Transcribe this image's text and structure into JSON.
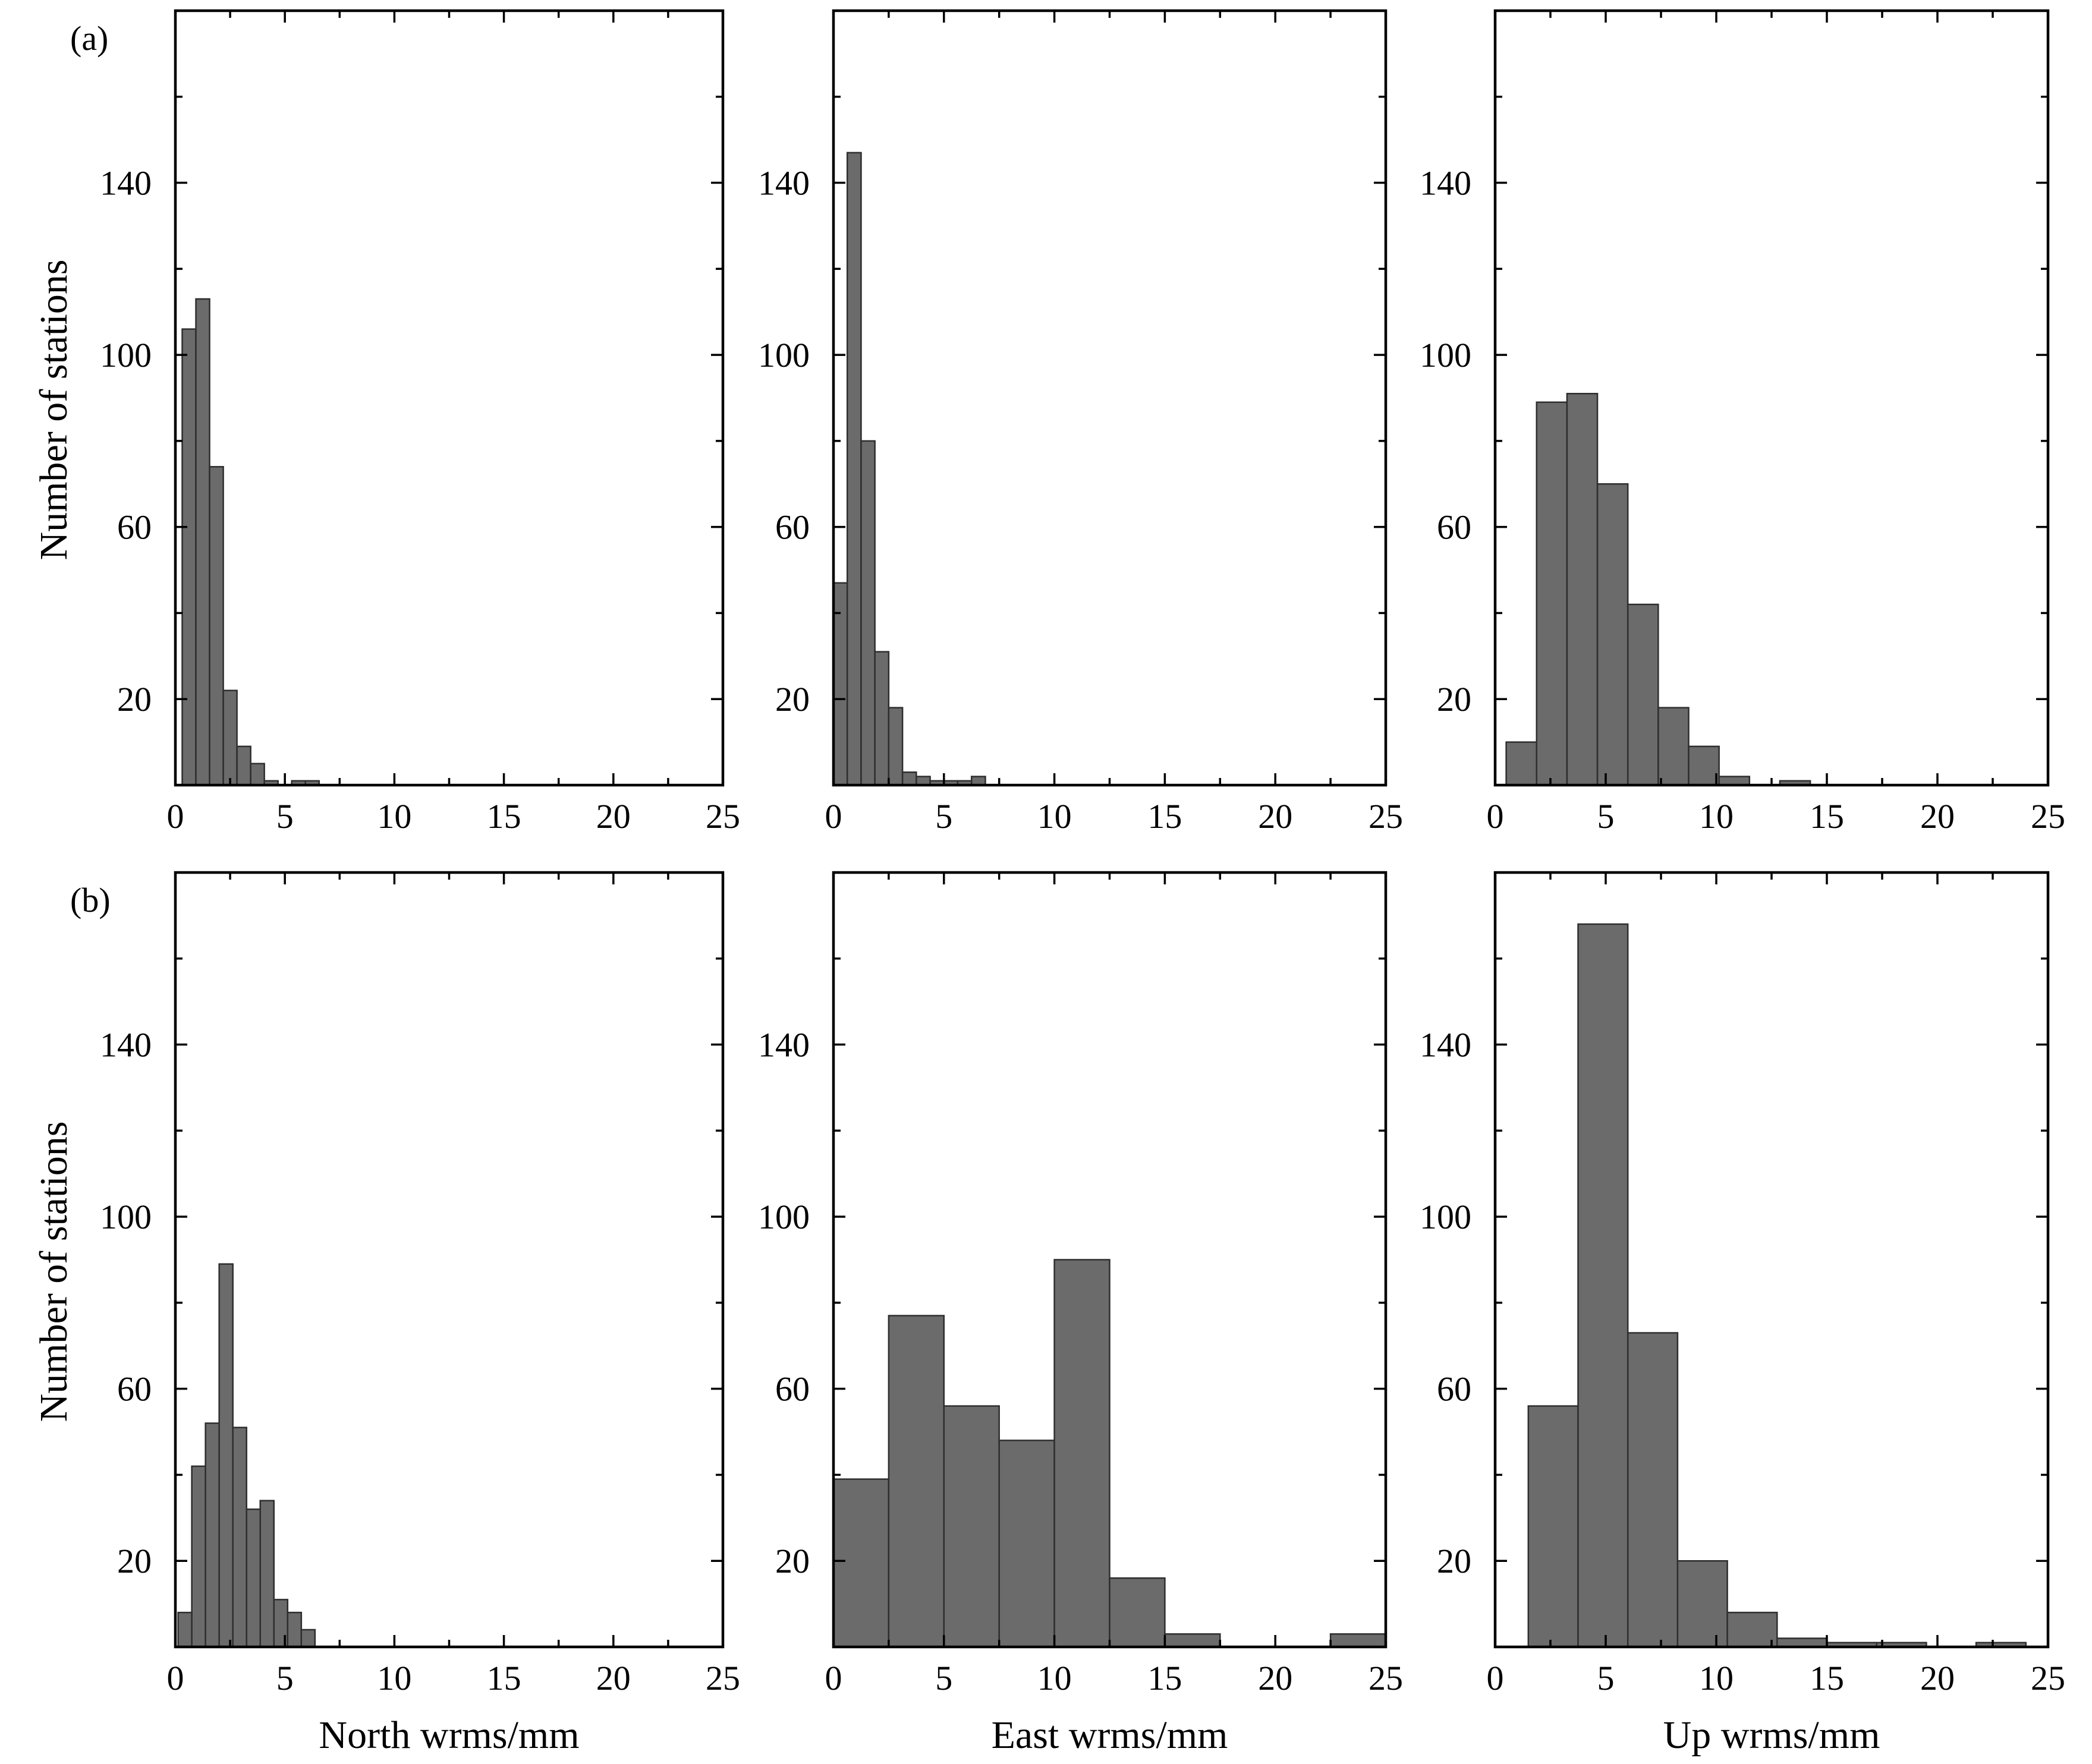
{
  "chart_data": [
    {
      "id": "a-north",
      "row": "a",
      "col": 0,
      "type": "bar",
      "panel_tag": "(a)",
      "ylabel": "Number of stations",
      "xlabel": "",
      "xlim": [
        0,
        25
      ],
      "ylim": [
        0,
        180
      ],
      "xticks": [
        0,
        5,
        10,
        15,
        20,
        25
      ],
      "yticks": [
        20,
        60,
        100,
        140
      ],
      "bin_width": 0.625,
      "bins": [
        {
          "x0": 0.3125,
          "count": 106
        },
        {
          "x0": 0.9375,
          "count": 113
        },
        {
          "x0": 1.5625,
          "count": 74
        },
        {
          "x0": 2.1875,
          "count": 22
        },
        {
          "x0": 2.8125,
          "count": 9
        },
        {
          "x0": 3.4375,
          "count": 5
        },
        {
          "x0": 4.0625,
          "count": 1
        },
        {
          "x0": 5.3125,
          "count": 1
        },
        {
          "x0": 5.9375,
          "count": 1
        }
      ]
    },
    {
      "id": "a-east",
      "row": "a",
      "col": 1,
      "type": "bar",
      "panel_tag": "",
      "ylabel": "",
      "xlabel": "",
      "xlim": [
        0,
        25
      ],
      "ylim": [
        0,
        180
      ],
      "xticks": [
        0,
        5,
        10,
        15,
        20,
        25
      ],
      "yticks": [
        20,
        60,
        100,
        140
      ],
      "bin_width": 0.625,
      "bins": [
        {
          "x0": 0.0,
          "count": 47
        },
        {
          "x0": 0.625,
          "count": 147
        },
        {
          "x0": 1.25,
          "count": 80
        },
        {
          "x0": 1.875,
          "count": 31
        },
        {
          "x0": 2.5,
          "count": 18
        },
        {
          "x0": 3.125,
          "count": 3
        },
        {
          "x0": 3.75,
          "count": 2
        },
        {
          "x0": 4.375,
          "count": 1
        },
        {
          "x0": 5.0,
          "count": 1
        },
        {
          "x0": 5.625,
          "count": 1
        },
        {
          "x0": 6.25,
          "count": 2
        }
      ]
    },
    {
      "id": "a-up",
      "row": "a",
      "col": 2,
      "type": "bar",
      "panel_tag": "",
      "ylabel": "",
      "xlabel": "",
      "xlim": [
        0,
        25
      ],
      "ylim": [
        0,
        180
      ],
      "xticks": [
        0,
        5,
        10,
        15,
        20,
        25
      ],
      "yticks": [
        20,
        60,
        100,
        140
      ],
      "bin_width": 1.375,
      "bins": [
        {
          "x0": 0.5,
          "count": 10
        },
        {
          "x0": 1.875,
          "count": 89
        },
        {
          "x0": 3.25,
          "count": 91
        },
        {
          "x0": 4.625,
          "count": 70
        },
        {
          "x0": 6.0,
          "count": 42
        },
        {
          "x0": 7.375,
          "count": 18
        },
        {
          "x0": 8.75,
          "count": 9
        },
        {
          "x0": 10.125,
          "count": 2
        },
        {
          "x0": 12.875,
          "count": 1
        }
      ]
    },
    {
      "id": "b-north",
      "row": "b",
      "col": 0,
      "type": "bar",
      "panel_tag": "(b)",
      "ylabel": "Number of stations",
      "xlabel": "North wrms/mm",
      "xlim": [
        0,
        25
      ],
      "ylim": [
        0,
        180
      ],
      "xticks": [
        0,
        5,
        10,
        15,
        20,
        25
      ],
      "yticks": [
        20,
        60,
        100,
        140
      ],
      "bin_width": 0.625,
      "bins": [
        {
          "x0": 0.125,
          "count": 8
        },
        {
          "x0": 0.75,
          "count": 42
        },
        {
          "x0": 1.375,
          "count": 52
        },
        {
          "x0": 2.0,
          "count": 89
        },
        {
          "x0": 2.625,
          "count": 51
        },
        {
          "x0": 3.25,
          "count": 32
        },
        {
          "x0": 3.875,
          "count": 34
        },
        {
          "x0": 4.5,
          "count": 11
        },
        {
          "x0": 5.125,
          "count": 8
        },
        {
          "x0": 5.75,
          "count": 4
        }
      ]
    },
    {
      "id": "b-east",
      "row": "b",
      "col": 1,
      "type": "bar",
      "panel_tag": "",
      "ylabel": "",
      "xlabel": "East wrms/mm",
      "xlim": [
        0,
        25
      ],
      "ylim": [
        0,
        180
      ],
      "xticks": [
        0,
        5,
        10,
        15,
        20,
        25
      ],
      "yticks": [
        20,
        60,
        100,
        140
      ],
      "bin_width": 2.5,
      "bins": [
        {
          "x0": 0.0,
          "count": 39
        },
        {
          "x0": 2.5,
          "count": 77
        },
        {
          "x0": 5.0,
          "count": 56
        },
        {
          "x0": 7.5,
          "count": 48
        },
        {
          "x0": 10.0,
          "count": 90
        },
        {
          "x0": 12.5,
          "count": 16
        },
        {
          "x0": 15.0,
          "count": 3
        },
        {
          "x0": 22.5,
          "count": 3
        }
      ]
    },
    {
      "id": "b-up",
      "row": "b",
      "col": 2,
      "type": "bar",
      "panel_tag": "",
      "ylabel": "",
      "xlabel": "Up wrms/mm",
      "xlim": [
        0,
        25
      ],
      "ylim": [
        0,
        180
      ],
      "xticks": [
        0,
        5,
        10,
        15,
        20,
        25
      ],
      "yticks": [
        20,
        60,
        100,
        140
      ],
      "bin_width": 2.25,
      "bins": [
        {
          "x0": 1.5,
          "count": 56
        },
        {
          "x0": 3.75,
          "count": 168
        },
        {
          "x0": 6.0,
          "count": 73
        },
        {
          "x0": 8.25,
          "count": 20
        },
        {
          "x0": 10.5,
          "count": 8
        },
        {
          "x0": 12.75,
          "count": 2
        },
        {
          "x0": 15.0,
          "count": 1
        },
        {
          "x0": 17.25,
          "count": 1
        },
        {
          "x0": 21.75,
          "count": 1
        }
      ]
    }
  ]
}
